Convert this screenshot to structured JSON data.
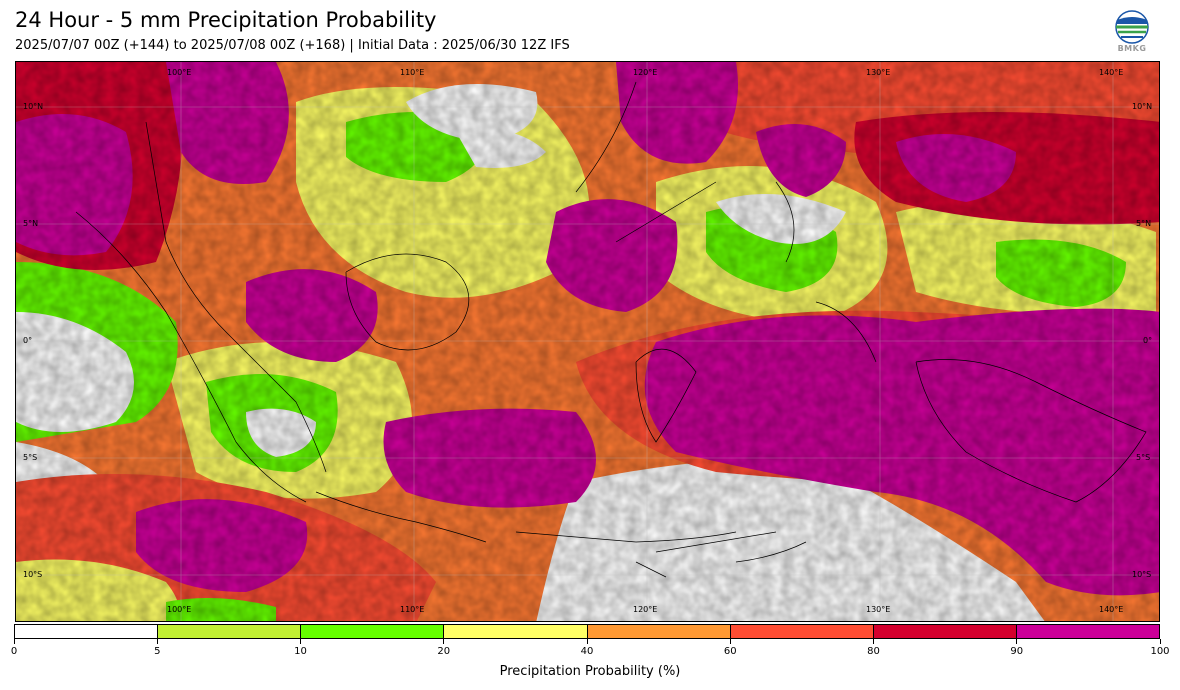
{
  "header": {
    "title": "24 Hour - 5 mm Precipitation Probability",
    "subtitle": "2025/07/07 00Z (+144) to 2025/07/08 00Z (+168) | Initial Data : 2025/06/30 12Z IFS"
  },
  "logo": {
    "text": "BMKG",
    "icon": "bmkg-globe-icon"
  },
  "map": {
    "lon_labels": [
      "100°E",
      "110°E",
      "120°E",
      "130°E",
      "140°E"
    ],
    "lat_labels": [
      "10°N",
      "5°N",
      "0°",
      "5°S",
      "10°S"
    ]
  },
  "colorbar": {
    "title": "Precipitation Probability (%)",
    "ticks": [
      "0",
      "5",
      "10",
      "20",
      "40",
      "60",
      "80",
      "90",
      "100"
    ],
    "colors": [
      "#ffffff",
      "#c2f033",
      "#66ff00",
      "#ffff66",
      "#ff9933",
      "#ff4d33",
      "#d4002e",
      "#cc0099"
    ]
  }
}
